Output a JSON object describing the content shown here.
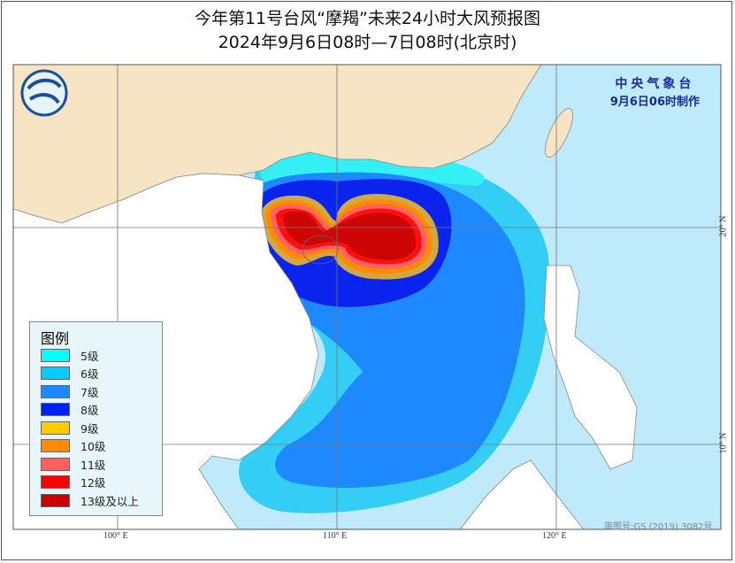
{
  "title": {
    "line1": "今年第11号台风“摩羯”未来24小时大风预报图",
    "line2": "2024年9月6日08时—7日08时(北京时)"
  },
  "publisher": {
    "name": "中央气象台",
    "issued": "9月6日06时制作"
  },
  "legend": {
    "title": "图例",
    "items": [
      {
        "label": "5级",
        "color": "#00ffff"
      },
      {
        "label": "6级",
        "color": "#00ccff"
      },
      {
        "label": "7级",
        "color": "#1e88ff"
      },
      {
        "label": "8级",
        "color": "#0022ee"
      },
      {
        "label": "9级",
        "color": "#ffcc00"
      },
      {
        "label": "10级",
        "color": "#ff8c00"
      },
      {
        "label": "11级",
        "color": "#ff6060"
      },
      {
        "label": "12级",
        "color": "#ff0000"
      },
      {
        "label": "13级及以上",
        "color": "#cc0000"
      }
    ]
  },
  "axes": {
    "longitude_labels": [
      "100° E",
      "110° E",
      "120° E"
    ],
    "latitude_labels": [
      "20° N",
      "10° N"
    ]
  },
  "map_approval": "审图号:GS (2019) 3082号",
  "colors": {
    "sea": "#bfeafb",
    "china_land": "#f6e4c4",
    "other_land": "#ffffff",
    "border": "#8a8a8a"
  }
}
